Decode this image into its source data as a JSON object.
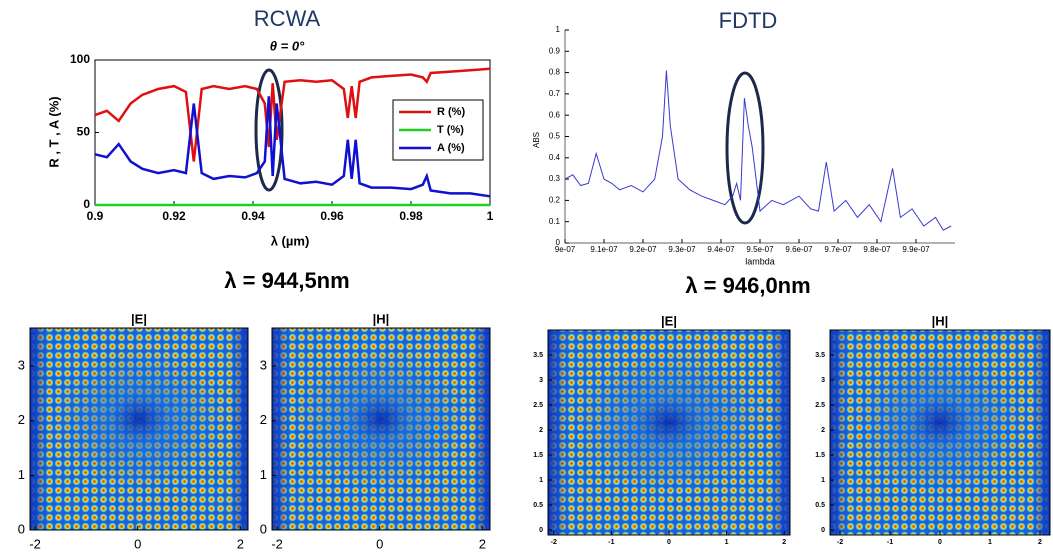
{
  "chart_data": [
    {
      "type": "line",
      "suptitle": "RCWA",
      "title": "θ = 0°",
      "caption": "λ = 944,5nm",
      "xlabel": "λ (µm)",
      "ylabel": "R , T , A (%)",
      "x": [
        0.9,
        0.903,
        0.906,
        0.909,
        0.912,
        0.916,
        0.92,
        0.923,
        0.925,
        0.927,
        0.93,
        0.934,
        0.938,
        0.941,
        0.943,
        0.944,
        0.945,
        0.946,
        0.948,
        0.952,
        0.956,
        0.96,
        0.963,
        0.964,
        0.965,
        0.966,
        0.967,
        0.97,
        0.975,
        0.98,
        0.983,
        0.984,
        0.985,
        0.99,
        0.995,
        1
      ],
      "series": [
        {
          "name": "R (%)",
          "color": "#e01010",
          "values": [
            62,
            65,
            58,
            70,
            76,
            80,
            82,
            78,
            30,
            80,
            82,
            80,
            82,
            80,
            70,
            40,
            84,
            45,
            85,
            86,
            85,
            86,
            80,
            60,
            82,
            60,
            85,
            88,
            89,
            90,
            88,
            85,
            91,
            92,
            93,
            94
          ]
        },
        {
          "name": "T (%)",
          "color": "#20d020",
          "values": [
            0,
            0,
            0,
            0,
            0,
            0,
            0,
            0,
            0,
            0,
            0,
            0,
            0,
            0,
            0,
            0,
            0,
            0,
            0,
            0,
            0,
            0,
            0,
            0,
            0,
            0,
            0,
            0,
            0,
            0,
            0,
            0,
            0,
            0,
            0,
            0
          ]
        },
        {
          "name": "A (%)",
          "color": "#1010d0",
          "values": [
            35,
            33,
            42,
            30,
            25,
            22,
            24,
            22,
            70,
            22,
            18,
            20,
            19,
            22,
            30,
            75,
            20,
            70,
            18,
            15,
            16,
            14,
            20,
            45,
            18,
            45,
            15,
            12,
            12,
            11,
            14,
            20,
            10,
            8,
            8,
            6
          ]
        }
      ],
      "xlim": [
        0.9,
        1
      ],
      "xticks": [
        0.9,
        0.92,
        0.94,
        0.96,
        0.98,
        1
      ],
      "ylim": [
        0,
        100
      ],
      "yticks": [
        0,
        50,
        100
      ],
      "legend": "right"
    },
    {
      "type": "line",
      "suptitle": "FDTD",
      "caption": "λ = 946,0nm",
      "xlabel": "lambda",
      "ylabel": "ABS",
      "x": [
        9e-07,
        9.02e-07,
        9.04e-07,
        9.06e-07,
        9.08e-07,
        9.1e-07,
        9.12e-07,
        9.14e-07,
        9.17e-07,
        9.2e-07,
        9.23e-07,
        9.25e-07,
        9.26e-07,
        9.27e-07,
        9.29e-07,
        9.32e-07,
        9.35e-07,
        9.38e-07,
        9.41e-07,
        9.43e-07,
        9.44e-07,
        9.45e-07,
        9.46e-07,
        9.47e-07,
        9.48e-07,
        9.5e-07,
        9.53e-07,
        9.56e-07,
        9.6e-07,
        9.63e-07,
        9.65e-07,
        9.67e-07,
        9.69e-07,
        9.72e-07,
        9.75e-07,
        9.78e-07,
        9.81e-07,
        9.84e-07,
        9.86e-07,
        9.89e-07,
        9.92e-07,
        9.95e-07,
        9.97e-07,
        9.99e-07
      ],
      "series": [
        {
          "name": null,
          "color": "#3a3ad0",
          "values": [
            0.3,
            0.32,
            0.27,
            0.28,
            0.42,
            0.3,
            0.28,
            0.25,
            0.27,
            0.24,
            0.3,
            0.5,
            0.81,
            0.55,
            0.3,
            0.25,
            0.22,
            0.2,
            0.18,
            0.22,
            0.28,
            0.2,
            0.68,
            0.55,
            0.45,
            0.15,
            0.2,
            0.18,
            0.22,
            0.16,
            0.15,
            0.38,
            0.15,
            0.2,
            0.12,
            0.18,
            0.1,
            0.35,
            0.12,
            0.16,
            0.08,
            0.12,
            0.06,
            0.08
          ]
        }
      ],
      "xlim": [
        9e-07,
        1e-06
      ],
      "xticks": [
        {
          "value": 9e-07,
          "label": "9e-07"
        },
        {
          "value": 9.1e-07,
          "label": "9.1e-07"
        },
        {
          "value": 9.2e-07,
          "label": "9.2e-07"
        },
        {
          "value": 9.3e-07,
          "label": "9.3e-07"
        },
        {
          "value": 9.4e-07,
          "label": "9.4e-07"
        },
        {
          "value": 9.5e-07,
          "label": "9.5e-07"
        },
        {
          "value": 9.6e-07,
          "label": "9.6e-07"
        },
        {
          "value": 9.7e-07,
          "label": "9.7e-07"
        },
        {
          "value": 9.8e-07,
          "label": "9.8e-07"
        },
        {
          "value": 9.9e-07,
          "label": "9.9e-07"
        }
      ],
      "ylim": [
        0,
        1
      ],
      "yticks": [
        0,
        0.1,
        0.2,
        0.3,
        0.4,
        0.5,
        0.6,
        0.7,
        0.8,
        0.9,
        1
      ]
    },
    {
      "type": "heatmap",
      "title": "|E|",
      "xlim": [
        -2.1,
        2.15
      ],
      "xticks": [
        -2,
        0,
        2
      ],
      "ylim": [
        0,
        3.7
      ],
      "yticks": [
        0,
        1,
        2,
        3
      ]
    },
    {
      "type": "heatmap",
      "title": "|H|",
      "xlim": [
        -2.1,
        2.15
      ],
      "xticks": [
        -2,
        0,
        2
      ],
      "ylim": [
        0,
        3.7
      ],
      "yticks": [
        0,
        1,
        2,
        3
      ]
    },
    {
      "type": "heatmap",
      "title": "|E|",
      "xlim": [
        -2.1,
        2.1
      ],
      "xticks": [
        -2,
        -1,
        0,
        1,
        2
      ],
      "ylim": [
        -0.1,
        4
      ],
      "yticks": [
        0,
        0.5,
        1,
        1.5,
        2,
        2.5,
        3,
        3.5
      ]
    },
    {
      "type": "heatmap",
      "title": "|H|",
      "xlim": [
        -2.2,
        2.2
      ],
      "xticks": [
        -2,
        -1,
        0,
        1,
        2
      ],
      "ylim": [
        -0.1,
        4
      ],
      "yticks": [
        0,
        0.5,
        1,
        1.5,
        2,
        2.5,
        3,
        3.5
      ]
    }
  ]
}
